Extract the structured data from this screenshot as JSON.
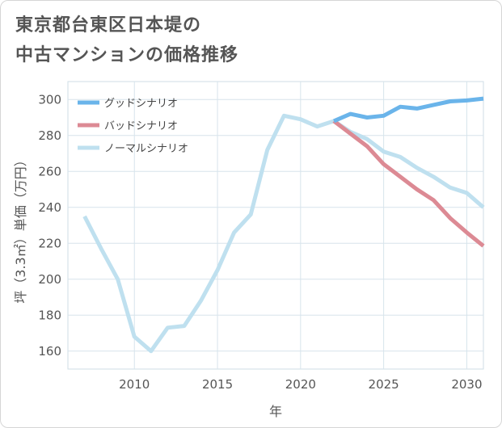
{
  "chart_data": {
    "type": "line",
    "title_lines": [
      "東京都台東区日本堤の",
      "中古マンションの価格推移"
    ],
    "xlabel": "年",
    "ylabel": "坪（3.3㎡）単価（万円）",
    "xlim": [
      2006,
      2031
    ],
    "ylim": [
      150,
      310
    ],
    "x_ticks": [
      2010,
      2015,
      2020,
      2025,
      2030
    ],
    "y_ticks": [
      160,
      180,
      200,
      220,
      240,
      260,
      280,
      300
    ],
    "grid": true,
    "legend_position": "top-left",
    "series": [
      {
        "name": "グッドシナリオ",
        "color": "#6ab4ea",
        "x": [
          2022,
          2023,
          2024,
          2025,
          2026,
          2027,
          2028,
          2029,
          2030,
          2031
        ],
        "y": [
          288,
          292,
          290,
          291,
          296,
          295,
          297,
          299,
          299.5,
          300.5
        ]
      },
      {
        "name": "バッドシナリオ",
        "color": "#dc8a94",
        "x": [
          2022,
          2023,
          2024,
          2025,
          2026,
          2027,
          2028,
          2029,
          2030,
          2031
        ],
        "y": [
          288,
          281,
          274,
          264,
          257,
          250,
          244,
          234,
          226,
          218.5
        ]
      },
      {
        "name": "ノーマルシナリオ",
        "color": "#bfe0ef",
        "x": [
          2007,
          2008,
          2009,
          2010,
          2011,
          2012,
          2013,
          2014,
          2015,
          2016,
          2017,
          2018,
          2019,
          2020,
          2021,
          2022,
          2023,
          2024,
          2025,
          2026,
          2027,
          2028,
          2029,
          2030,
          2031
        ],
        "y": [
          235,
          217,
          200,
          168,
          160,
          173,
          174,
          188,
          205,
          226,
          236,
          272,
          291,
          289,
          285,
          288,
          282,
          278,
          271,
          268,
          262,
          257,
          251,
          248,
          240
        ]
      }
    ]
  }
}
